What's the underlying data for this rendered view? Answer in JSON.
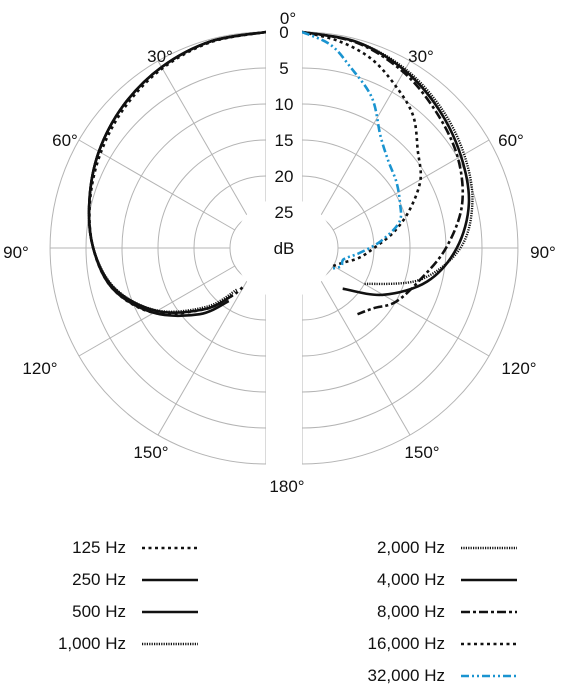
{
  "chart_data": {
    "type": "polar",
    "unit": "dB",
    "radial_ticks": [
      "0",
      "5",
      "10",
      "15",
      "20",
      "25"
    ],
    "radial_range_db": [
      0,
      25
    ],
    "angle_labels": {
      "a0": "0°",
      "a30r": "30°",
      "a30l": "30°",
      "a60r": "60°",
      "a60l": "60°",
      "a90r": "90°",
      "a90l": "90°",
      "a120r": "120°",
      "a120l": "120°",
      "a150r": "150°",
      "a150l": "150°",
      "a180": "180°"
    },
    "left_half_series": [
      {
        "name": "125 Hz",
        "angles": [
          0,
          15,
          30,
          45,
          60,
          75,
          90,
          105,
          120,
          135,
          145,
          150
        ],
        "db": [
          0,
          0.4,
          1.2,
          2.3,
          3.5,
          4.7,
          6,
          8,
          12,
          18,
          22,
          24
        ]
      },
      {
        "name": "250 Hz",
        "angles": [
          0,
          15,
          30,
          45,
          60,
          75,
          90,
          105,
          120,
          135,
          145
        ],
        "db": [
          0,
          0.3,
          1,
          2,
          3.2,
          4.6,
          6,
          8,
          12,
          17,
          21
        ]
      },
      {
        "name": "500 Hz",
        "angles": [
          0,
          15,
          30,
          45,
          60,
          75,
          90,
          105,
          120,
          135,
          145
        ],
        "db": [
          0,
          0.3,
          1,
          2,
          3.2,
          4.6,
          6,
          8.2,
          12.5,
          18,
          22
        ]
      },
      {
        "name": "1,000 Hz",
        "angles": [
          0,
          15,
          30,
          45,
          60,
          75,
          90,
          105,
          120,
          135,
          145
        ],
        "db": [
          0,
          0.3,
          1,
          2,
          3.2,
          4.6,
          6,
          8.3,
          12.6,
          18.5,
          23
        ]
      }
    ],
    "right_half_series": [
      {
        "name": "2,000 Hz",
        "angles": [
          0,
          15,
          30,
          45,
          60,
          75,
          90,
          105,
          120
        ],
        "db": [
          0,
          0.4,
          1.3,
          2.6,
          4,
          5.5,
          8,
          13,
          20
        ]
      },
      {
        "name": "4,000 Hz",
        "angles": [
          0,
          15,
          30,
          45,
          60,
          75,
          90,
          105,
          120,
          135
        ],
        "db": [
          0,
          0.4,
          1.5,
          3,
          4.5,
          6,
          8.5,
          12,
          17,
          22
        ]
      },
      {
        "name": "8,000 Hz",
        "angles": [
          0,
          15,
          30,
          45,
          60,
          75,
          90,
          105,
          120,
          130,
          140
        ],
        "db": [
          0,
          0.5,
          1.8,
          3.5,
          5,
          7,
          10,
          13,
          15,
          17,
          18
        ]
      },
      {
        "name": "16,000 Hz",
        "angles": [
          0,
          10,
          20,
          30,
          40,
          50,
          60,
          70,
          80,
          90,
          100,
          110,
          120
        ],
        "db": [
          0,
          0.8,
          2,
          4,
          6,
          9,
          11,
          14,
          17,
          20,
          22,
          24,
          25
        ]
      },
      {
        "name": "32,000 Hz",
        "angles": [
          0,
          8,
          15,
          25,
          35,
          45,
          55,
          65,
          75,
          85,
          95,
          105,
          115,
          125
        ],
        "db": [
          0,
          1.5,
          4,
          7,
          11,
          13,
          14,
          15,
          16,
          19,
          22,
          24,
          24,
          25
        ]
      }
    ],
    "legend": {
      "col1": [
        "125 Hz",
        "250 Hz",
        "500 Hz",
        "1,000 Hz"
      ],
      "col2": [
        "2,000 Hz",
        "4,000 Hz",
        "8,000 Hz",
        "16,000 Hz",
        "32,000 Hz"
      ]
    },
    "series_styles": {
      "125 Hz": {
        "color": "#111111",
        "dash": "3,3.5",
        "width": 2.6
      },
      "250 Hz": {
        "color": "#111111",
        "dash": "",
        "width": 2.6
      },
      "500 Hz": {
        "color": "#111111",
        "dash": "",
        "width": 2.6
      },
      "1,000 Hz": {
        "color": "#111111",
        "dash": "1.2,1.2",
        "width": 2.4
      },
      "2,000 Hz": {
        "color": "#111111",
        "dash": "1.2,1.2",
        "width": 2.4
      },
      "4,000 Hz": {
        "color": "#111111",
        "dash": "",
        "width": 2.6
      },
      "8,000 Hz": {
        "color": "#111111",
        "dash": "9,3,3,3",
        "width": 2.6
      },
      "16,000 Hz": {
        "color": "#111111",
        "dash": "3,3.5",
        "width": 2.6
      },
      "32,000 Hz": {
        "color": "#1a94d0",
        "dash": "8,3,2,3,2,3",
        "width": 2.6
      }
    },
    "grid": true
  }
}
